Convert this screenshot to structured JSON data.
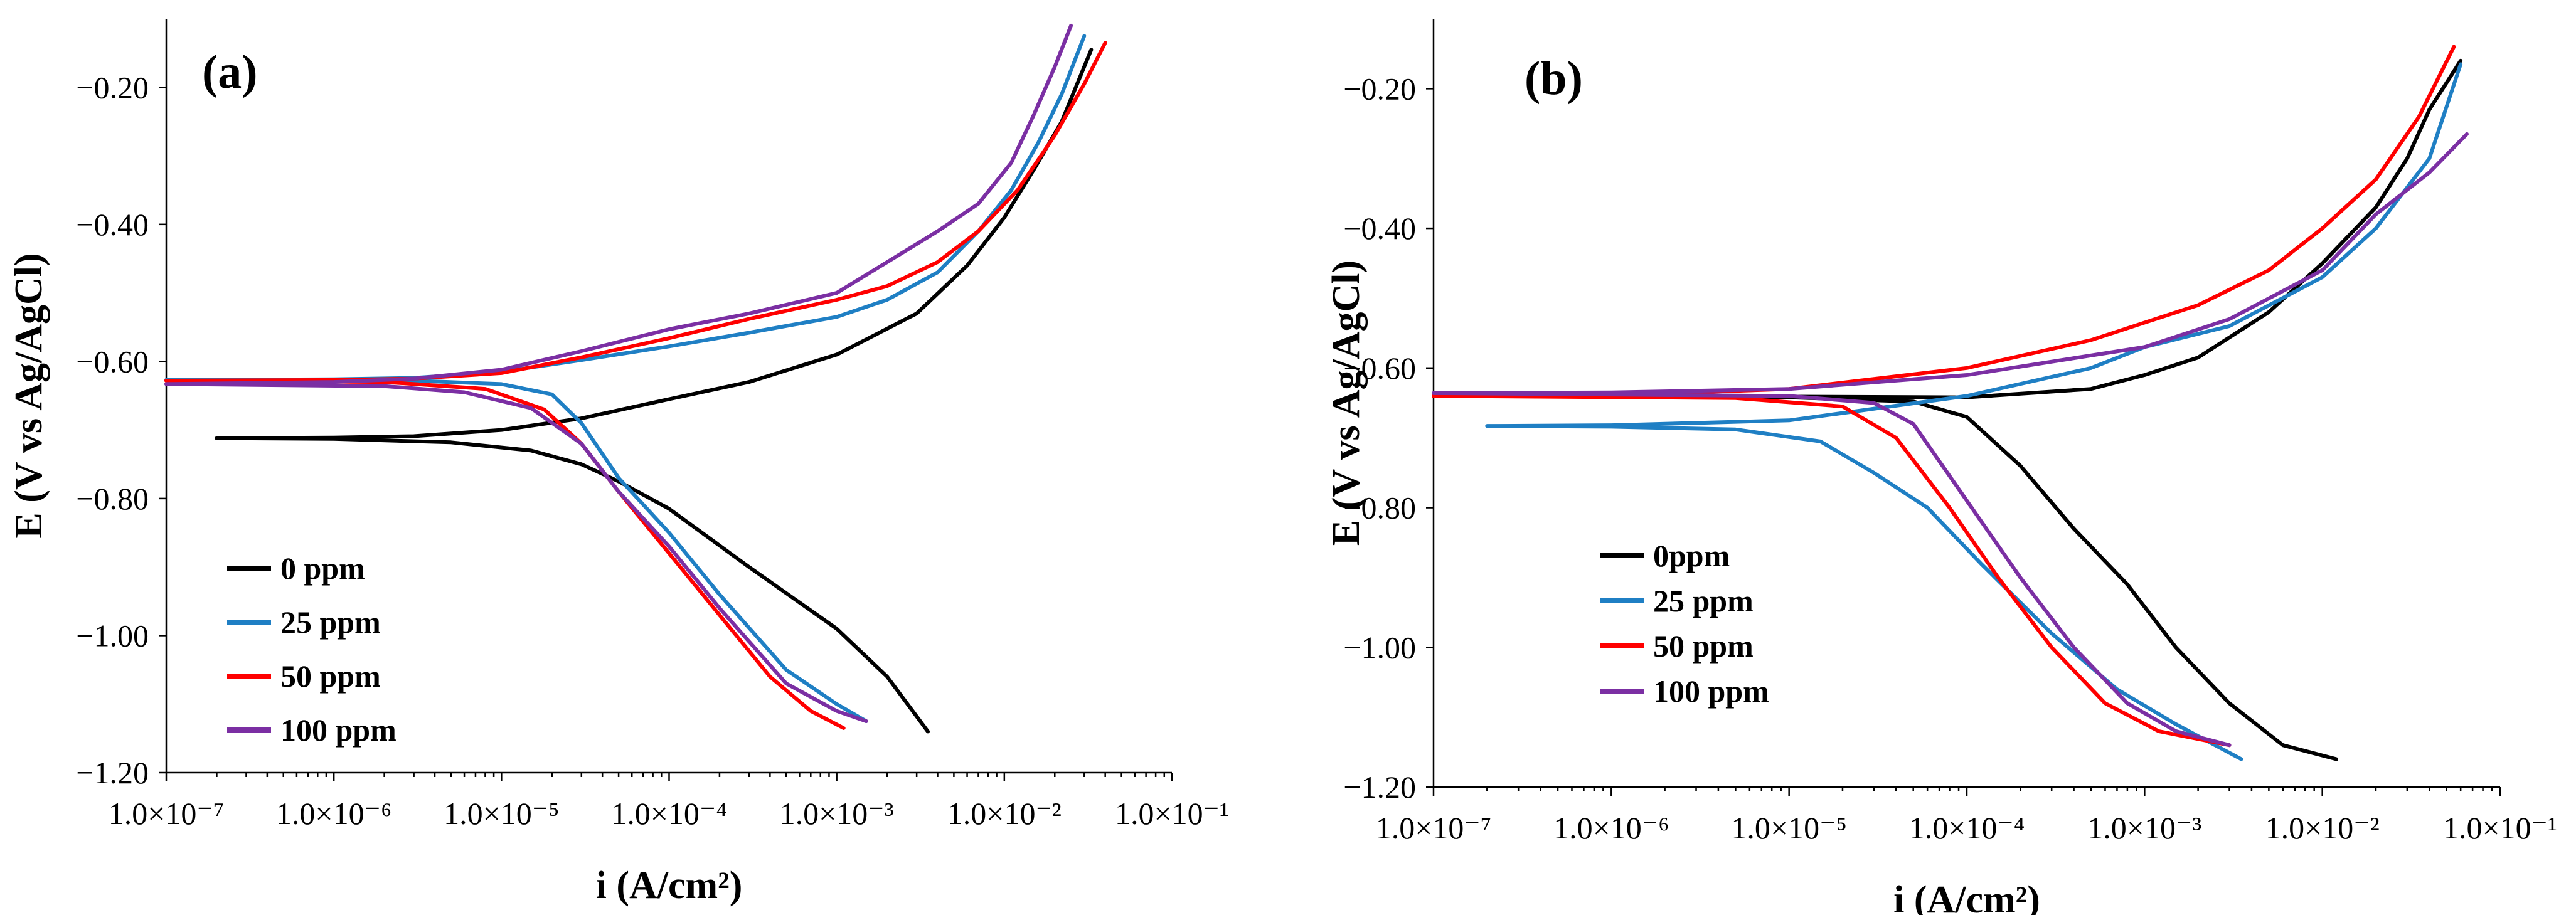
{
  "colors": {
    "0 ppm": "#000000",
    "25 ppm": "#1f7fc4",
    "50 ppm": "#ff0000",
    "100 ppm": "#7b2fa3"
  },
  "chart_data": [
    {
      "type": "line",
      "panel_label": "(a)",
      "xlabel": "i (A/cm²)",
      "ylabel": "E (V vs Ag/AgCl)",
      "xscale": "log",
      "xlim": [
        1e-07,
        0.1
      ],
      "ylim": [
        -1.2,
        -0.1
      ],
      "xticks": [
        1e-07,
        1e-06,
        1e-05,
        0.0001,
        0.001,
        0.01,
        0.1
      ],
      "xtick_labels": [
        "1.0×10⁻⁷",
        "1.0×10⁻⁶",
        "1.0×10⁻⁵",
        "1.0×10⁻⁴",
        "1.0×10⁻³",
        "1.0×10⁻²",
        "1.0×10⁻¹"
      ],
      "yticks": [
        -0.2,
        -0.4,
        -0.6,
        -0.8,
        -1.0,
        -1.2
      ],
      "ytick_labels": [
        "−0.20",
        "−0.40",
        "−0.60",
        "−0.80",
        "−1.00",
        "−1.20"
      ],
      "legend_position": "bottom-left",
      "series": [
        {
          "name": "0 ppm",
          "legend_label": "0 ppm",
          "anodic": [
            [
              2e-07,
              -0.712
            ],
            [
              1e-06,
              -0.711
            ],
            [
              3e-06,
              -0.709
            ],
            [
              1e-05,
              -0.7
            ],
            [
              3e-05,
              -0.683
            ],
            [
              0.0001,
              -0.655
            ],
            [
              0.0003,
              -0.63
            ],
            [
              0.001,
              -0.59
            ],
            [
              0.003,
              -0.53
            ],
            [
              0.006,
              -0.46
            ],
            [
              0.01,
              -0.39
            ],
            [
              0.015,
              -0.32
            ],
            [
              0.022,
              -0.25
            ],
            [
              0.033,
              -0.145
            ]
          ],
          "cathodic": [
            [
              2e-07,
              -0.712
            ],
            [
              1e-06,
              -0.713
            ],
            [
              5e-06,
              -0.718
            ],
            [
              1.5e-05,
              -0.73
            ],
            [
              3e-05,
              -0.75
            ],
            [
              5e-05,
              -0.775
            ],
            [
              0.0001,
              -0.815
            ],
            [
              0.0003,
              -0.9
            ],
            [
              0.001,
              -0.99
            ],
            [
              0.002,
              -1.06
            ],
            [
              0.0035,
              -1.14
            ]
          ]
        },
        {
          "name": "25 ppm",
          "legend_label": "25 ppm",
          "anodic": [
            [
              1e-07,
              -0.627
            ],
            [
              1e-06,
              -0.626
            ],
            [
              3e-06,
              -0.624
            ],
            [
              1e-05,
              -0.615
            ],
            [
              3e-05,
              -0.598
            ],
            [
              0.0001,
              -0.578
            ],
            [
              0.0003,
              -0.558
            ],
            [
              0.001,
              -0.535
            ],
            [
              0.002,
              -0.51
            ],
            [
              0.004,
              -0.47
            ],
            [
              0.007,
              -0.41
            ],
            [
              0.011,
              -0.35
            ],
            [
              0.016,
              -0.28
            ],
            [
              0.022,
              -0.21
            ],
            [
              0.03,
              -0.125
            ]
          ],
          "cathodic": [
            [
              1e-07,
              -0.627
            ],
            [
              3e-06,
              -0.628
            ],
            [
              1e-05,
              -0.633
            ],
            [
              2e-05,
              -0.648
            ],
            [
              3e-05,
              -0.69
            ],
            [
              5e-05,
              -0.77
            ],
            [
              0.0001,
              -0.85
            ],
            [
              0.0002,
              -0.94
            ],
            [
              0.0005,
              -1.05
            ],
            [
              0.001,
              -1.1
            ],
            [
              0.0015,
              -1.125
            ]
          ]
        },
        {
          "name": "50 ppm",
          "legend_label": "50 ppm",
          "anodic": [
            [
              1e-07,
              -0.628
            ],
            [
              1e-06,
              -0.627
            ],
            [
              3e-06,
              -0.625
            ],
            [
              1e-05,
              -0.617
            ],
            [
              3e-05,
              -0.594
            ],
            [
              0.0001,
              -0.566
            ],
            [
              0.0003,
              -0.538
            ],
            [
              0.001,
              -0.51
            ],
            [
              0.002,
              -0.49
            ],
            [
              0.004,
              -0.455
            ],
            [
              0.007,
              -0.41
            ],
            [
              0.012,
              -0.35
            ],
            [
              0.02,
              -0.27
            ],
            [
              0.03,
              -0.195
            ],
            [
              0.04,
              -0.135
            ]
          ],
          "cathodic": [
            [
              1e-07,
              -0.628
            ],
            [
              2e-06,
              -0.63
            ],
            [
              8e-06,
              -0.64
            ],
            [
              1.8e-05,
              -0.67
            ],
            [
              3e-05,
              -0.72
            ],
            [
              5e-05,
              -0.79
            ],
            [
              0.0001,
              -0.88
            ],
            [
              0.0002,
              -0.97
            ],
            [
              0.0004,
              -1.06
            ],
            [
              0.0007,
              -1.11
            ],
            [
              0.0011,
              -1.135
            ]
          ]
        },
        {
          "name": "100 ppm",
          "legend_label": "100 ppm",
          "anodic": [
            [
              1e-07,
              -0.633
            ],
            [
              1e-06,
              -0.63
            ],
            [
              3e-06,
              -0.625
            ],
            [
              1e-05,
              -0.612
            ],
            [
              3e-05,
              -0.585
            ],
            [
              0.0001,
              -0.553
            ],
            [
              0.0003,
              -0.53
            ],
            [
              0.001,
              -0.5
            ],
            [
              0.002,
              -0.455
            ],
            [
              0.004,
              -0.41
            ],
            [
              0.007,
              -0.37
            ],
            [
              0.011,
              -0.31
            ],
            [
              0.015,
              -0.24
            ],
            [
              0.02,
              -0.17
            ],
            [
              0.025,
              -0.11
            ]
          ],
          "cathodic": [
            [
              1e-07,
              -0.633
            ],
            [
              2e-06,
              -0.636
            ],
            [
              6e-06,
              -0.645
            ],
            [
              1.5e-05,
              -0.668
            ],
            [
              3e-05,
              -0.72
            ],
            [
              5e-05,
              -0.79
            ],
            [
              0.0001,
              -0.87
            ],
            [
              0.0002,
              -0.96
            ],
            [
              0.0005,
              -1.07
            ],
            [
              0.001,
              -1.11
            ],
            [
              0.0015,
              -1.125
            ]
          ]
        }
      ]
    },
    {
      "type": "line",
      "panel_label": "(b)",
      "xlabel": "i (A/cm²)",
      "ylabel": "E (V vs Ag/AgCl)",
      "xscale": "log",
      "xlim": [
        1e-07,
        0.1
      ],
      "ylim": [
        -1.2,
        -0.1
      ],
      "xticks": [
        1e-07,
        1e-06,
        1e-05,
        0.0001,
        0.001,
        0.01,
        0.1
      ],
      "xtick_labels": [
        "1.0×10⁻⁷",
        "1.0×10⁻⁶",
        "1.0×10⁻⁵",
        "1.0×10⁻⁴",
        "1.0×10⁻³",
        "1.0×10⁻²",
        "1.0×10⁻¹"
      ],
      "yticks": [
        -0.2,
        -0.4,
        -0.6,
        -0.8,
        -1.0,
        -1.2
      ],
      "ytick_labels": [
        "−0.20",
        "−0.40",
        "−0.60",
        "−0.80",
        "−1.00",
        "−1.20"
      ],
      "legend_position": "center-left",
      "series": [
        {
          "name": "0 ppm",
          "legend_label": "0ppm",
          "anodic": [
            [
              1e-07,
              -0.64
            ],
            [
              1e-05,
              -0.641
            ],
            [
              0.0001,
              -0.642
            ],
            [
              0.0005,
              -0.63
            ],
            [
              0.001,
              -0.61
            ],
            [
              0.002,
              -0.585
            ],
            [
              0.005,
              -0.52
            ],
            [
              0.01,
              -0.45
            ],
            [
              0.02,
              -0.37
            ],
            [
              0.03,
              -0.3
            ],
            [
              0.04,
              -0.23
            ],
            [
              0.06,
              -0.16
            ]
          ],
          "cathodic": [
            [
              1e-07,
              -0.64
            ],
            [
              1e-05,
              -0.642
            ],
            [
              5e-05,
              -0.648
            ],
            [
              0.0001,
              -0.67
            ],
            [
              0.0002,
              -0.74
            ],
            [
              0.0004,
              -0.83
            ],
            [
              0.0008,
              -0.91
            ],
            [
              0.0015,
              -1.0
            ],
            [
              0.003,
              -1.08
            ],
            [
              0.006,
              -1.14
            ],
            [
              0.012,
              -1.16
            ]
          ]
        },
        {
          "name": "25 ppm",
          "legend_label": "25 ppm",
          "anodic": [
            [
              2e-07,
              -0.683
            ],
            [
              1e-06,
              -0.682
            ],
            [
              1e-05,
              -0.675
            ],
            [
              0.0001,
              -0.64
            ],
            [
              0.0005,
              -0.6
            ],
            [
              0.001,
              -0.57
            ],
            [
              0.003,
              -0.54
            ],
            [
              0.01,
              -0.47
            ],
            [
              0.02,
              -0.4
            ],
            [
              0.04,
              -0.3
            ],
            [
              0.06,
              -0.165
            ]
          ],
          "cathodic": [
            [
              2e-07,
              -0.683
            ],
            [
              1e-06,
              -0.684
            ],
            [
              5e-06,
              -0.688
            ],
            [
              1.5e-05,
              -0.705
            ],
            [
              3e-05,
              -0.75
            ],
            [
              6e-05,
              -0.8
            ],
            [
              0.00012,
              -0.88
            ],
            [
              0.0003,
              -0.98
            ],
            [
              0.0007,
              -1.06
            ],
            [
              0.0015,
              -1.11
            ],
            [
              0.0035,
              -1.16
            ]
          ]
        },
        {
          "name": "50 ppm",
          "legend_label": "50 ppm",
          "anodic": [
            [
              1e-07,
              -0.64
            ],
            [
              1e-06,
              -0.639
            ],
            [
              1e-05,
              -0.63
            ],
            [
              0.0001,
              -0.6
            ],
            [
              0.0005,
              -0.56
            ],
            [
              0.002,
              -0.51
            ],
            [
              0.005,
              -0.46
            ],
            [
              0.01,
              -0.4
            ],
            [
              0.02,
              -0.33
            ],
            [
              0.035,
              -0.24
            ],
            [
              0.055,
              -0.14
            ]
          ],
          "cathodic": [
            [
              1e-07,
              -0.64
            ],
            [
              5e-06,
              -0.643
            ],
            [
              2e-05,
              -0.655
            ],
            [
              4e-05,
              -0.7
            ],
            [
              8e-05,
              -0.8
            ],
            [
              0.00015,
              -0.9
            ],
            [
              0.0003,
              -1.0
            ],
            [
              0.0006,
              -1.08
            ],
            [
              0.0012,
              -1.12
            ],
            [
              0.003,
              -1.14
            ]
          ]
        },
        {
          "name": "100 ppm",
          "legend_label": "100 ppm",
          "anodic": [
            [
              1e-07,
              -0.636
            ],
            [
              1e-06,
              -0.635
            ],
            [
              1e-05,
              -0.63
            ],
            [
              0.0001,
              -0.61
            ],
            [
              0.001,
              -0.57
            ],
            [
              0.003,
              -0.53
            ],
            [
              0.01,
              -0.46
            ],
            [
              0.02,
              -0.38
            ],
            [
              0.04,
              -0.32
            ],
            [
              0.065,
              -0.265
            ]
          ],
          "cathodic": [
            [
              1e-07,
              -0.636
            ],
            [
              1e-05,
              -0.64
            ],
            [
              3e-05,
              -0.65
            ],
            [
              5e-05,
              -0.68
            ],
            [
              0.0001,
              -0.79
            ],
            [
              0.0002,
              -0.9
            ],
            [
              0.0004,
              -1.0
            ],
            [
              0.0008,
              -1.08
            ],
            [
              0.0015,
              -1.12
            ],
            [
              0.003,
              -1.14
            ]
          ]
        }
      ]
    }
  ]
}
